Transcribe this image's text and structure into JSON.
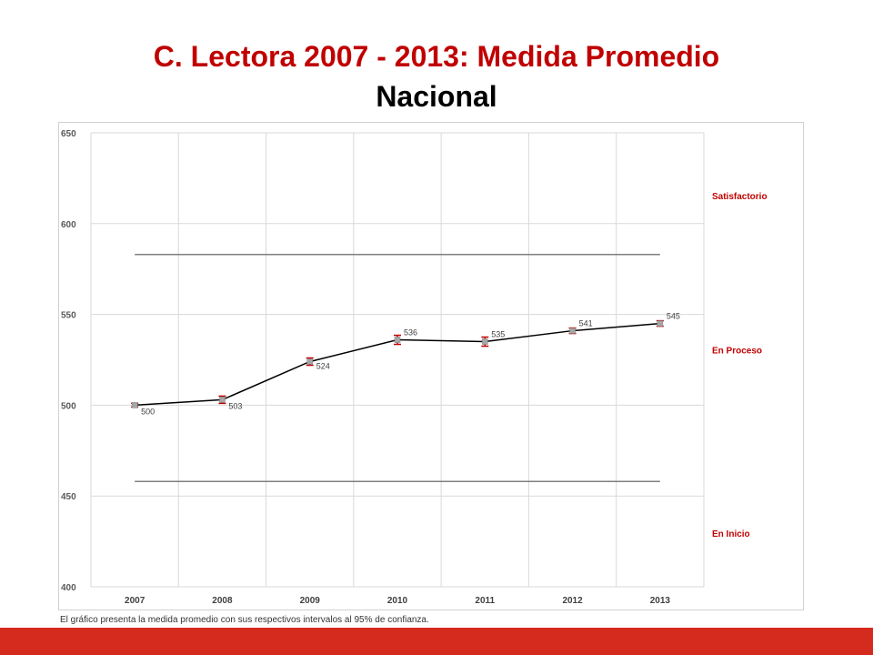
{
  "slide": {
    "title_line1": "C. Lectora 2007 - 2013: Medida Promedio",
    "title_line2": "Nacional",
    "footnote": "El gráfico presenta la medida promedio con sus respectivos intervalos al 95% de confianza.",
    "accent_color": "#c00000",
    "bar_color": "#d52b1e"
  },
  "chart_data": {
    "type": "line",
    "title": "",
    "xlabel": "",
    "ylabel": "",
    "categories": [
      "2007",
      "2008",
      "2009",
      "2010",
      "2011",
      "2012",
      "2013"
    ],
    "series": [
      {
        "values": [
          500,
          503,
          524,
          536,
          535,
          541,
          545
        ],
        "color": "#000000"
      }
    ],
    "data_labels": [
      "500",
      "503",
      "524",
      "536",
      "535",
      "541",
      "545"
    ],
    "error_interval_95": [
      1,
      2,
      2,
      2.5,
      2.5,
      1.5,
      1.5
    ],
    "ylim": [
      400,
      650
    ],
    "yticks": [
      "400",
      "450",
      "500",
      "550",
      "600",
      "650"
    ],
    "reference_lines": [
      {
        "value": 583,
        "color": "#7f7f7f"
      },
      {
        "value": 458,
        "color": "#7f7f7f"
      }
    ],
    "zones": [
      {
        "label": "Satisfactorio",
        "y": 615
      },
      {
        "label": "En Proceso",
        "y": 530
      },
      {
        "label": "En Inicio",
        "y": 429
      }
    ],
    "grid": true,
    "zone_label_color": "#c00000",
    "marker_color": "#a6a6a6",
    "errorbar_color": "#c00000"
  }
}
